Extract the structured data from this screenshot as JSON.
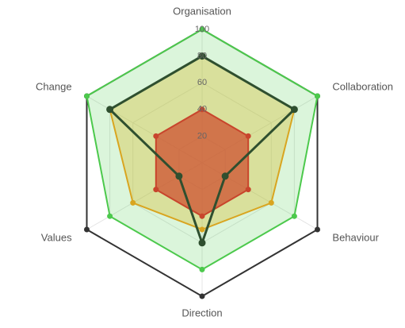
{
  "chart_data": {
    "type": "radar",
    "categories": [
      "Organisation",
      "Collaboration",
      "Behaviour",
      "Direction",
      "Values",
      "Change"
    ],
    "rlim": [
      0,
      100
    ],
    "rticks": [
      20,
      40,
      60,
      80,
      100
    ],
    "grid": true,
    "series": [
      {
        "color": "#333333",
        "fill": "none",
        "values": [
          100,
          100,
          100,
          100,
          100,
          100
        ]
      },
      {
        "color": "#4cc94c",
        "fill": "rgba(90,210,90,0.22)",
        "values": [
          100,
          100,
          80,
          80,
          80,
          100
        ]
      },
      {
        "color": "#d9a520",
        "fill": "rgba(215,185,40,0.35)",
        "values": [
          80,
          80,
          60,
          50,
          60,
          80
        ]
      },
      {
        "color": "#c8452c",
        "fill": "rgba(205,75,45,0.72)",
        "values": [
          40,
          40,
          40,
          40,
          40,
          40
        ]
      },
      {
        "color": "#2f4f2f",
        "fill": "none",
        "values": [
          80,
          80,
          20,
          60,
          20,
          80
        ]
      }
    ]
  }
}
